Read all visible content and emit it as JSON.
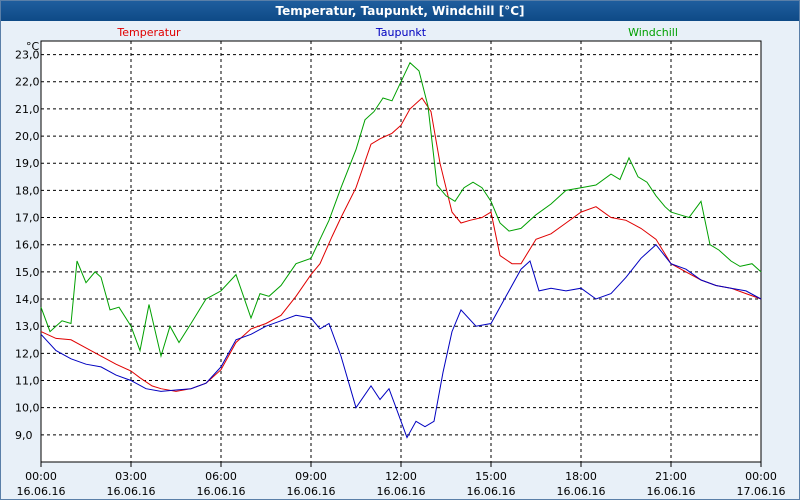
{
  "window": {
    "title": "Temperatur, Taupunkt, Windchill [°C]"
  },
  "chart_data": {
    "type": "line",
    "title": "Temperatur, Taupunkt, Windchill [°C]",
    "ylabel": "°C",
    "ylim": [
      8.0,
      23.5
    ],
    "xlim": [
      "2016-06-16 00:00",
      "2016-06-17 00:00"
    ],
    "y_ticks": [
      "9,0",
      "10,0",
      "11,0",
      "12,0",
      "13,0",
      "14,0",
      "15,0",
      "16,0",
      "17,0",
      "18,0",
      "19,0",
      "20,0",
      "21,0",
      "22,0",
      "23,0"
    ],
    "y_tick_values": [
      9,
      10,
      11,
      12,
      13,
      14,
      15,
      16,
      17,
      18,
      19,
      20,
      21,
      22,
      23
    ],
    "x_ticks": [
      {
        "time": "00:00",
        "date": "16.06.16",
        "hour": 0
      },
      {
        "time": "03:00",
        "date": "16.06.16",
        "hour": 3
      },
      {
        "time": "06:00",
        "date": "16.06.16",
        "hour": 6
      },
      {
        "time": "09:00",
        "date": "16.06.16",
        "hour": 9
      },
      {
        "time": "12:00",
        "date": "16.06.16",
        "hour": 12
      },
      {
        "time": "15:00",
        "date": "16.06.16",
        "hour": 15
      },
      {
        "time": "18:00",
        "date": "16.06.16",
        "hour": 18
      },
      {
        "time": "21:00",
        "date": "16.06.16",
        "hour": 21
      },
      {
        "time": "00:00",
        "date": "17.06.16",
        "hour": 24
      }
    ],
    "grid": true,
    "legend_placement": "top",
    "series": [
      {
        "name": "Temperatur",
        "color": "#e00000",
        "x": [
          0,
          0.5,
          1,
          1.5,
          2,
          2.5,
          3,
          3.3,
          3.7,
          4,
          4.5,
          5,
          5.5,
          6,
          6.5,
          7,
          7.5,
          8,
          8.5,
          9,
          9.3,
          9.7,
          10,
          10.5,
          11,
          11.3,
          11.7,
          12,
          12.3,
          12.7,
          13,
          13.3,
          13.7,
          14,
          14.3,
          14.7,
          15,
          15.3,
          15.7,
          16,
          16.5,
          17,
          17.5,
          18,
          18.5,
          19,
          19.5,
          20,
          20.5,
          21,
          21.5,
          22,
          22.5,
          23,
          23.5,
          24
        ],
        "y": [
          12.8,
          12.55,
          12.5,
          12.2,
          11.9,
          11.6,
          11.35,
          11.1,
          10.8,
          10.7,
          10.6,
          10.7,
          10.9,
          11.4,
          12.4,
          12.9,
          13.1,
          13.4,
          14.1,
          14.9,
          15.3,
          16.3,
          17.0,
          18.1,
          19.7,
          19.9,
          20.1,
          20.4,
          21.0,
          21.4,
          20.9,
          19.0,
          17.2,
          16.8,
          16.9,
          17.0,
          17.2,
          15.6,
          15.3,
          15.3,
          16.2,
          16.4,
          16.8,
          17.2,
          17.4,
          17.0,
          16.9,
          16.6,
          16.2,
          15.3,
          15.0,
          14.7,
          14.5,
          14.4,
          14.2,
          14.0
        ]
      },
      {
        "name": "Taupunkt",
        "color": "#0000c0",
        "x": [
          0,
          0.5,
          1,
          1.5,
          2,
          2.5,
          3,
          3.5,
          4,
          4.5,
          5,
          5.5,
          6,
          6.5,
          7,
          7.5,
          8,
          8.5,
          9,
          9.3,
          9.6,
          10,
          10.5,
          11,
          11.3,
          11.6,
          11.9,
          12.2,
          12.5,
          12.8,
          13.1,
          13.4,
          13.7,
          14,
          14.5,
          15,
          15.5,
          16,
          16.3,
          16.6,
          17,
          17.5,
          18,
          18.5,
          19,
          19.5,
          20,
          20.5,
          21,
          21.5,
          22,
          22.5,
          23,
          23.5,
          24
        ],
        "y": [
          12.7,
          12.1,
          11.8,
          11.6,
          11.5,
          11.2,
          11.0,
          10.7,
          10.6,
          10.65,
          10.7,
          10.9,
          11.5,
          12.5,
          12.7,
          13.0,
          13.2,
          13.4,
          13.3,
          12.9,
          13.1,
          11.9,
          10.0,
          10.8,
          10.3,
          10.7,
          9.8,
          8.9,
          9.5,
          9.3,
          9.5,
          11.3,
          12.8,
          13.6,
          13.0,
          13.1,
          14.1,
          15.1,
          15.4,
          14.3,
          14.4,
          14.3,
          14.4,
          14.0,
          14.2,
          14.8,
          15.5,
          16.0,
          15.3,
          15.1,
          14.7,
          14.5,
          14.4,
          14.3,
          14.0
        ]
      },
      {
        "name": "Windchill",
        "color": "#00a000",
        "x": [
          0,
          0.3,
          0.7,
          1,
          1.2,
          1.5,
          1.8,
          2,
          2.3,
          2.6,
          3,
          3.3,
          3.6,
          4,
          4.3,
          4.6,
          5,
          5.5,
          6,
          6.5,
          7,
          7.3,
          7.6,
          8,
          8.5,
          9,
          9.3,
          9.6,
          10,
          10.5,
          10.8,
          11.1,
          11.4,
          11.7,
          12,
          12.3,
          12.6,
          12.9,
          13.2,
          13.5,
          13.8,
          14.1,
          14.4,
          14.7,
          15,
          15.3,
          15.6,
          16,
          16.5,
          17,
          17.5,
          18,
          18.5,
          19,
          19.3,
          19.6,
          19.9,
          20.2,
          20.5,
          20.8,
          21,
          21.3,
          21.6,
          22,
          22.3,
          22.6,
          23,
          23.3,
          23.7,
          24
        ],
        "y": [
          13.7,
          12.8,
          13.2,
          13.1,
          15.4,
          14.6,
          15.0,
          14.8,
          13.6,
          13.7,
          13.0,
          12.1,
          13.8,
          11.9,
          13.0,
          12.4,
          13.1,
          14.0,
          14.3,
          14.9,
          13.3,
          14.2,
          14.1,
          14.5,
          15.3,
          15.5,
          16.2,
          16.9,
          18.1,
          19.5,
          20.6,
          20.9,
          21.4,
          21.3,
          22.0,
          22.7,
          22.4,
          21.1,
          18.2,
          17.8,
          17.6,
          18.1,
          18.3,
          18.1,
          17.6,
          16.8,
          16.5,
          16.6,
          17.1,
          17.5,
          18.0,
          18.1,
          18.2,
          18.6,
          18.4,
          19.2,
          18.5,
          18.3,
          17.8,
          17.4,
          17.2,
          17.1,
          17.0,
          17.6,
          16.0,
          15.8,
          15.4,
          15.2,
          15.3,
          15.0
        ]
      }
    ]
  }
}
